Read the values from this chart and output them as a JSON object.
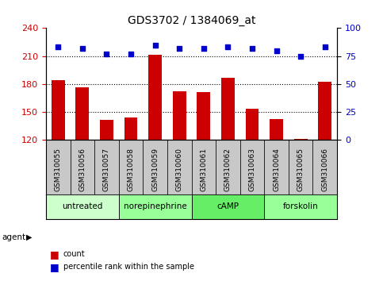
{
  "title": "GDS3702 / 1384069_at",
  "samples": [
    "GSM310055",
    "GSM310056",
    "GSM310057",
    "GSM310058",
    "GSM310059",
    "GSM310060",
    "GSM310061",
    "GSM310062",
    "GSM310063",
    "GSM310064",
    "GSM310065",
    "GSM310066"
  ],
  "bar_values": [
    184,
    176,
    141,
    144,
    211,
    172,
    171,
    187,
    153,
    142,
    121,
    182
  ],
  "dot_values": [
    83,
    82,
    77,
    77,
    85,
    82,
    82,
    83,
    82,
    80,
    75,
    83
  ],
  "ylim_left": [
    120,
    240
  ],
  "ylim_right": [
    0,
    100
  ],
  "yticks_left": [
    120,
    150,
    180,
    210,
    240
  ],
  "yticks_right": [
    0,
    25,
    50,
    75,
    100
  ],
  "bar_color": "#cc0000",
  "dot_color": "#0000cc",
  "bar_bottom": 120,
  "agent_groups": [
    {
      "label": "untreated",
      "start": 0,
      "end": 3,
      "color": "#ccffcc"
    },
    {
      "label": "norepinephrine",
      "start": 3,
      "end": 6,
      "color": "#99ff99"
    },
    {
      "label": "cAMP",
      "start": 6,
      "end": 9,
      "color": "#66ee66"
    },
    {
      "label": "forskolin",
      "start": 9,
      "end": 12,
      "color": "#99ff99"
    }
  ],
  "agent_colors": [
    "#ccffcc",
    "#99ff99",
    "#66ee66",
    "#99ff99"
  ],
  "xlabel_agent": "agent",
  "legend_count_color": "#cc0000",
  "legend_dot_color": "#0000cc",
  "bg_color": "#ffffff",
  "tick_area_color": "#c8c8c8",
  "gridline_yticks": [
    150,
    180,
    210
  ],
  "title_fontsize": 10,
  "bar_width": 0.55
}
